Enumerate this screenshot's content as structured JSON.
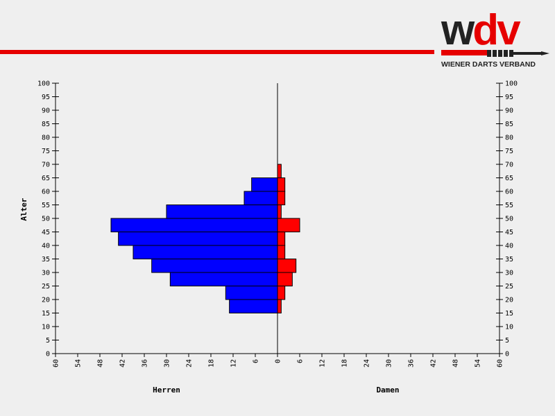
{
  "logo": {
    "brand": "wdv",
    "subtitle": "WIENER DARTS VERBAND"
  },
  "colors": {
    "stripe": "#e60000",
    "herren": "#0000ff",
    "damen": "#ff0000",
    "logo_dark": "#222222"
  },
  "chart_data": {
    "type": "bar",
    "orientation": "population-pyramid",
    "ylabel": "Alter",
    "left_label": "Herren",
    "right_label": "Damen",
    "ylim": [
      0,
      100
    ],
    "y_ticks": [
      0,
      5,
      10,
      15,
      20,
      25,
      30,
      35,
      40,
      45,
      50,
      55,
      60,
      65,
      70,
      75,
      80,
      85,
      90,
      95,
      100
    ],
    "x_ticks": [
      60,
      54,
      48,
      42,
      36,
      30,
      24,
      18,
      12,
      6,
      0,
      6,
      12,
      18,
      24,
      30,
      36,
      42,
      48,
      54,
      60
    ],
    "xlim": [
      -60,
      60
    ],
    "age_groups": [
      "15-20",
      "20-25",
      "25-30",
      "30-35",
      "35-40",
      "40-45",
      "45-50",
      "50-55",
      "55-60",
      "60-65",
      "65-70"
    ],
    "series": [
      {
        "name": "Herren",
        "side": "left",
        "values": [
          13,
          14,
          29,
          34,
          39,
          43,
          45,
          30,
          9,
          7,
          0
        ]
      },
      {
        "name": "Damen",
        "side": "right",
        "values": [
          1,
          2,
          4,
          5,
          2,
          2,
          6,
          1,
          2,
          2,
          1
        ]
      }
    ]
  }
}
